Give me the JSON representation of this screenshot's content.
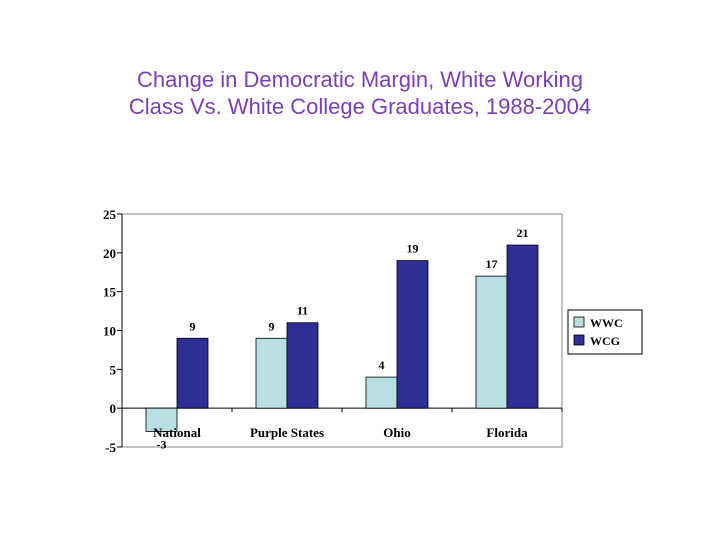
{
  "title": {
    "line1": "Change in Democratic Margin, White Working",
    "line2": "Class Vs. White College Graduates, 1988-2004"
  },
  "chart_data": {
    "type": "bar",
    "title": "Change in Democratic Margin, White Working Class Vs. White College Graduates, 1988-2004",
    "categories": [
      "National",
      "Purple States",
      "Ohio",
      "Florida"
    ],
    "series": [
      {
        "name": "WWC",
        "values": [
          -3,
          9,
          4,
          17
        ],
        "color": "#b8e0e3"
      },
      {
        "name": "WCG",
        "values": [
          9,
          11,
          19,
          21
        ],
        "color": "#2e2e96"
      }
    ],
    "data_labels": [
      [
        "-3",
        "9",
        "4",
        "17"
      ],
      [
        "9",
        "11",
        "19",
        "21"
      ]
    ],
    "ylim": [
      -5,
      25
    ],
    "yticks": [
      -5,
      0,
      5,
      10,
      15,
      20,
      25
    ],
    "xlabel": "",
    "ylabel": "",
    "grid": false,
    "legend": "right"
  }
}
